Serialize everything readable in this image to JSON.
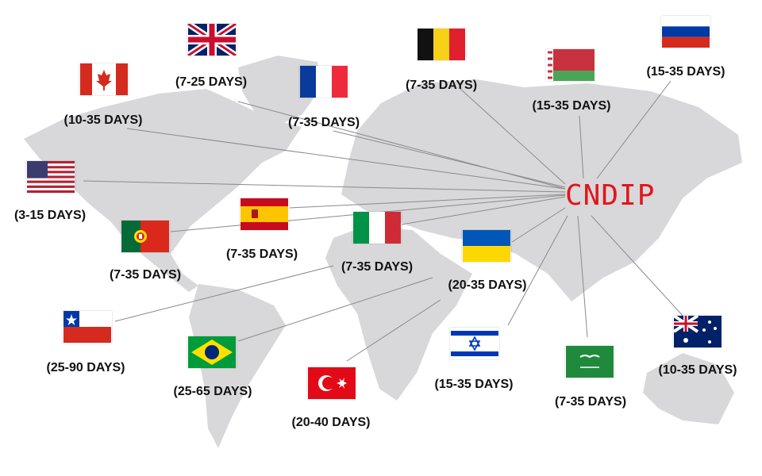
{
  "brand": "CNDIP",
  "colors": {
    "brand": "#e3141b",
    "map": "#d8d8da",
    "lines": "#8a8a8a"
  },
  "destinations": [
    {
      "flag": "uk-flag",
      "days": "(7-25 DAYS)"
    },
    {
      "flag": "canada-flag",
      "days": "(10-35 DAYS)"
    },
    {
      "flag": "france-flag",
      "days": "(7-35 DAYS)"
    },
    {
      "flag": "belgium-flag",
      "days": "(7-35 DAYS)"
    },
    {
      "flag": "belarus-flag",
      "days": "(15-35 DAYS)"
    },
    {
      "flag": "russia-flag",
      "days": "(15-35 DAYS)"
    },
    {
      "flag": "usa-flag",
      "days": "(3-15 DAYS)"
    },
    {
      "flag": "spain-flag",
      "days": "(7-35 DAYS)"
    },
    {
      "flag": "portugal-flag",
      "days": "(7-35 DAYS)"
    },
    {
      "flag": "italy-flag",
      "days": "(7-35 DAYS)"
    },
    {
      "flag": "ukraine-flag",
      "days": "(20-35 DAYS)"
    },
    {
      "flag": "chile-flag",
      "days": "(25-90 DAYS)"
    },
    {
      "flag": "brazil-flag",
      "days": "(25-65 DAYS)"
    },
    {
      "flag": "turkey-flag",
      "days": "(20-40 DAYS)"
    },
    {
      "flag": "israel-flag",
      "days": "(15-35 DAYS)"
    },
    {
      "flag": "saudi-arabia-flag",
      "days": "(7-35 DAYS)"
    },
    {
      "flag": "australia-flag",
      "days": "(10-35 DAYS)"
    }
  ]
}
